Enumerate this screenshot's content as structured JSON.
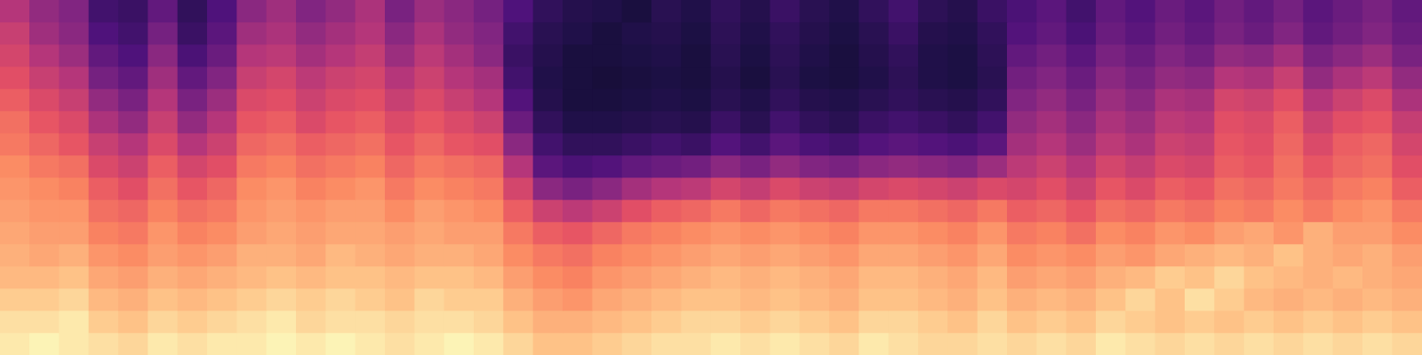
{
  "chart_data": {
    "type": "heatmap",
    "clim": [
      0,
      100
    ],
    "tick_labels": false,
    "grid": false,
    "cells": [
      [
        50,
        42,
        38,
        22,
        20,
        30,
        18,
        25,
        40,
        45,
        38,
        42,
        48,
        36,
        44,
        40,
        35,
        25,
        18,
        15,
        14,
        12,
        16,
        14,
        18,
        15,
        20,
        16,
        14,
        18,
        22,
        17,
        15,
        20,
        24,
        28,
        22,
        30,
        26,
        32,
        28,
        34,
        30,
        35,
        28,
        32,
        36,
        30
      ],
      [
        55,
        45,
        40,
        25,
        22,
        35,
        20,
        28,
        45,
        48,
        42,
        46,
        50,
        40,
        48,
        42,
        38,
        22,
        16,
        14,
        12,
        14,
        15,
        13,
        17,
        14,
        18,
        15,
        13,
        16,
        20,
        15,
        14,
        18,
        26,
        30,
        24,
        32,
        28,
        34,
        30,
        36,
        32,
        38,
        30,
        34,
        38,
        32
      ],
      [
        58,
        50,
        44,
        30,
        25,
        40,
        24,
        32,
        50,
        52,
        46,
        50,
        54,
        44,
        52,
        46,
        40,
        20,
        15,
        12,
        12,
        13,
        14,
        12,
        16,
        13,
        17,
        14,
        12,
        15,
        18,
        14,
        13,
        17,
        30,
        34,
        28,
        36,
        32,
        38,
        34,
        42,
        40,
        46,
        36,
        40,
        44,
        36
      ],
      [
        62,
        55,
        50,
        35,
        30,
        45,
        30,
        38,
        55,
        58,
        52,
        56,
        58,
        50,
        56,
        50,
        46,
        22,
        14,
        12,
        11,
        12,
        13,
        12,
        15,
        12,
        16,
        13,
        12,
        14,
        17,
        14,
        13,
        16,
        34,
        38,
        32,
        40,
        36,
        42,
        40,
        50,
        48,
        55,
        42,
        48,
        52,
        42
      ],
      [
        66,
        60,
        55,
        42,
        36,
        50,
        36,
        44,
        60,
        62,
        56,
        60,
        62,
        55,
        60,
        55,
        50,
        26,
        15,
        12,
        12,
        13,
        14,
        13,
        16,
        14,
        18,
        15,
        14,
        16,
        18,
        16,
        15,
        18,
        38,
        42,
        36,
        44,
        40,
        48,
        46,
        58,
        56,
        62,
        50,
        56,
        60,
        48
      ],
      [
        70,
        64,
        60,
        48,
        42,
        55,
        42,
        50,
        64,
        66,
        60,
        64,
        66,
        60,
        64,
        60,
        56,
        32,
        18,
        14,
        14,
        15,
        16,
        15,
        20,
        16,
        22,
        18,
        16,
        20,
        22,
        20,
        18,
        22,
        42,
        46,
        40,
        48,
        44,
        52,
        50,
        62,
        60,
        66,
        56,
        62,
        64,
        54
      ],
      [
        72,
        68,
        64,
        55,
        50,
        60,
        50,
        56,
        68,
        70,
        66,
        68,
        70,
        64,
        68,
        64,
        62,
        40,
        22,
        18,
        18,
        20,
        22,
        20,
        26,
        22,
        28,
        24,
        22,
        26,
        28,
        26,
        24,
        28,
        46,
        50,
        44,
        52,
        48,
        56,
        54,
        64,
        62,
        68,
        60,
        66,
        68,
        58
      ],
      [
        76,
        72,
        70,
        60,
        56,
        66,
        58,
        62,
        72,
        74,
        70,
        72,
        74,
        68,
        72,
        70,
        68,
        50,
        28,
        24,
        26,
        30,
        32,
        34,
        40,
        36,
        42,
        38,
        36,
        40,
        42,
        40,
        38,
        44,
        52,
        56,
        50,
        58,
        54,
        60,
        58,
        66,
        64,
        70,
        64,
        68,
        70,
        62
      ],
      [
        78,
        76,
        74,
        66,
        62,
        70,
        64,
        68,
        76,
        78,
        74,
        76,
        78,
        72,
        76,
        74,
        72,
        58,
        40,
        36,
        40,
        46,
        50,
        52,
        58,
        54,
        60,
        56,
        54,
        58,
        60,
        58,
        56,
        60,
        58,
        62,
        56,
        64,
        60,
        66,
        64,
        70,
        68,
        72,
        68,
        72,
        74,
        66
      ],
      [
        80,
        78,
        78,
        70,
        68,
        74,
        70,
        72,
        78,
        80,
        78,
        80,
        80,
        76,
        80,
        78,
        76,
        66,
        56,
        52,
        56,
        62,
        66,
        68,
        72,
        68,
        72,
        70,
        68,
        72,
        72,
        70,
        68,
        72,
        66,
        68,
        64,
        70,
        68,
        72,
        70,
        74,
        72,
        76,
        72,
        76,
        78,
        72
      ],
      [
        82,
        80,
        80,
        74,
        72,
        78,
        74,
        76,
        80,
        82,
        80,
        82,
        82,
        80,
        82,
        80,
        80,
        72,
        66,
        64,
        68,
        72,
        74,
        76,
        78,
        76,
        78,
        76,
        74,
        78,
        78,
        76,
        74,
        78,
        72,
        74,
        70,
        76,
        74,
        78,
        76,
        80,
        82,
        78,
        84,
        80,
        80,
        76
      ],
      [
        84,
        82,
        84,
        78,
        76,
        80,
        78,
        80,
        84,
        84,
        82,
        86,
        84,
        82,
        84,
        84,
        82,
        76,
        72,
        70,
        74,
        76,
        78,
        80,
        82,
        80,
        82,
        80,
        78,
        82,
        82,
        80,
        78,
        82,
        76,
        78,
        76,
        80,
        78,
        82,
        84,
        86,
        84,
        88,
        84,
        82,
        84,
        80
      ],
      [
        86,
        86,
        88,
        82,
        80,
        84,
        82,
        84,
        86,
        88,
        86,
        88,
        88,
        86,
        88,
        88,
        86,
        80,
        76,
        74,
        78,
        80,
        82,
        84,
        86,
        84,
        86,
        84,
        82,
        86,
        86,
        84,
        82,
        86,
        80,
        82,
        80,
        84,
        86,
        90,
        88,
        92,
        88,
        86,
        84,
        86,
        84,
        82
      ],
      [
        90,
        90,
        92,
        86,
        84,
        88,
        86,
        88,
        90,
        92,
        90,
        92,
        90,
        88,
        92,
        90,
        90,
        84,
        80,
        78,
        82,
        84,
        86,
        88,
        88,
        86,
        88,
        86,
        84,
        88,
        88,
        86,
        84,
        88,
        84,
        86,
        84,
        88,
        92,
        88,
        94,
        90,
        86,
        84,
        86,
        84,
        86,
        84
      ],
      [
        94,
        94,
        96,
        90,
        88,
        92,
        90,
        92,
        94,
        96,
        92,
        94,
        94,
        92,
        94,
        94,
        92,
        88,
        84,
        84,
        86,
        88,
        90,
        92,
        92,
        90,
        92,
        90,
        88,
        92,
        92,
        90,
        88,
        92,
        88,
        90,
        88,
        92,
        90,
        88,
        90,
        88,
        90,
        88,
        90,
        88,
        90,
        88
      ],
      [
        96,
        98,
        96,
        94,
        92,
        96,
        94,
        96,
        96,
        98,
        96,
        98,
        96,
        94,
        96,
        98,
        96,
        92,
        88,
        88,
        90,
        92,
        94,
        94,
        96,
        94,
        96,
        94,
        92,
        96,
        94,
        92,
        92,
        94,
        92,
        94,
        92,
        96,
        94,
        92,
        94,
        92,
        94,
        92,
        94,
        92,
        94,
        92
      ]
    ]
  }
}
